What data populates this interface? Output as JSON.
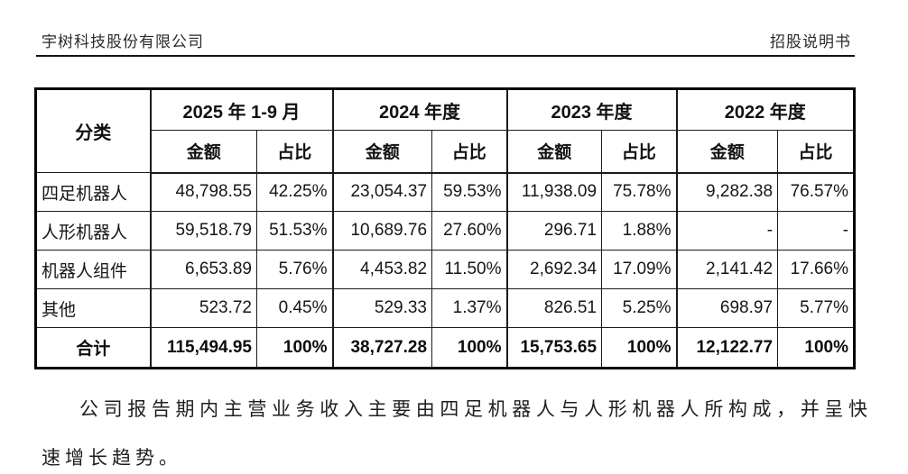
{
  "header": {
    "company": "宇树科技股份有限公司",
    "doc_title": "招股说明书"
  },
  "table": {
    "corner_label": "分类",
    "periods": [
      {
        "label": "2025 年 1-9 月",
        "amount_label": "金额",
        "ratio_label": "占比"
      },
      {
        "label": "2024 年度",
        "amount_label": "金额",
        "ratio_label": "占比"
      },
      {
        "label": "2023 年度",
        "amount_label": "金额",
        "ratio_label": "占比"
      },
      {
        "label": "2022 年度",
        "amount_label": "金额",
        "ratio_label": "占比"
      }
    ],
    "rows": [
      {
        "category": "四足机器人",
        "values": [
          "48,798.55",
          "42.25%",
          "23,054.37",
          "59.53%",
          "11,938.09",
          "75.78%",
          "9,282.38",
          "76.57%"
        ]
      },
      {
        "category": "人形机器人",
        "values": [
          "59,518.79",
          "51.53%",
          "10,689.76",
          "27.60%",
          "296.71",
          "1.88%",
          "-",
          "-"
        ]
      },
      {
        "category": "机器人组件",
        "values": [
          "6,653.89",
          "5.76%",
          "4,453.82",
          "11.50%",
          "2,692.34",
          "17.09%",
          "2,141.42",
          "17.66%"
        ]
      },
      {
        "category": "其他",
        "values": [
          "523.72",
          "0.45%",
          "529.33",
          "1.37%",
          "826.51",
          "5.25%",
          "698.97",
          "5.77%"
        ]
      }
    ],
    "total_row": {
      "category": "合计",
      "values": [
        "115,494.95",
        "100%",
        "38,727.28",
        "100%",
        "15,753.65",
        "100%",
        "12,122.77",
        "100%"
      ]
    }
  },
  "paragraph": "公司报告期内主营业务收入主要由四足机器人与人形机器人所构成，并呈快速增长趋势。",
  "colors": {
    "background": "#ffffff",
    "text": "#1c1c1c",
    "border": "#000000"
  }
}
